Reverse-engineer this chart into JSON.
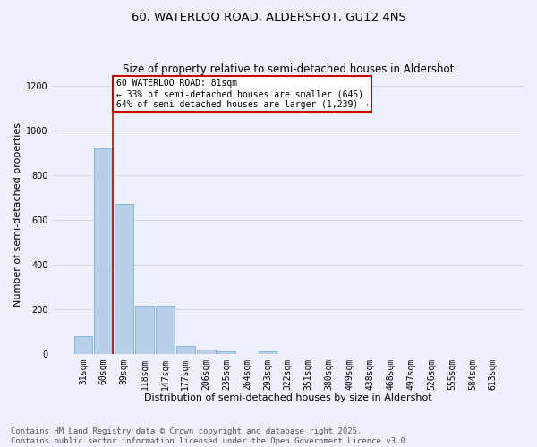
{
  "title_line1": "60, WATERLOO ROAD, ALDERSHOT, GU12 4NS",
  "title_line2": "Size of property relative to semi-detached houses in Aldershot",
  "xlabel": "Distribution of semi-detached houses by size in Aldershot",
  "ylabel": "Number of semi-detached properties",
  "categories": [
    "31sqm",
    "60sqm",
    "89sqm",
    "118sqm",
    "147sqm",
    "177sqm",
    "206sqm",
    "235sqm",
    "264sqm",
    "293sqm",
    "322sqm",
    "351sqm",
    "380sqm",
    "409sqm",
    "438sqm",
    "468sqm",
    "497sqm",
    "526sqm",
    "555sqm",
    "584sqm",
    "613sqm"
  ],
  "values": [
    80,
    920,
    670,
    215,
    215,
    35,
    20,
    12,
    0,
    12,
    0,
    0,
    0,
    0,
    0,
    0,
    0,
    0,
    0,
    0,
    0
  ],
  "bar_color": "#b8cfe8",
  "bar_edge_color": "#7aafd4",
  "annotation_title": "60 WATERLOO ROAD: 81sqm",
  "annotation_line1": "← 33% of semi-detached houses are smaller (645)",
  "annotation_line2": "64% of semi-detached houses are larger (1,239) →",
  "annotation_box_color": "#ffffff",
  "annotation_box_edge": "#cc0000",
  "vline_color": "#cc0000",
  "ylim": [
    0,
    1250
  ],
  "yticks": [
    0,
    200,
    400,
    600,
    800,
    1000,
    1200
  ],
  "footnote1": "Contains HM Land Registry data © Crown copyright and database right 2025.",
  "footnote2": "Contains public sector information licensed under the Open Government Licence v3.0.",
  "bg_color": "#eef1fb",
  "plot_bg_color": "#eef1fb",
  "title_fontsize": 9.5,
  "subtitle_fontsize": 8.5,
  "axis_label_fontsize": 8,
  "tick_fontsize": 7,
  "annotation_fontsize": 7,
  "footnote_fontsize": 6.5
}
